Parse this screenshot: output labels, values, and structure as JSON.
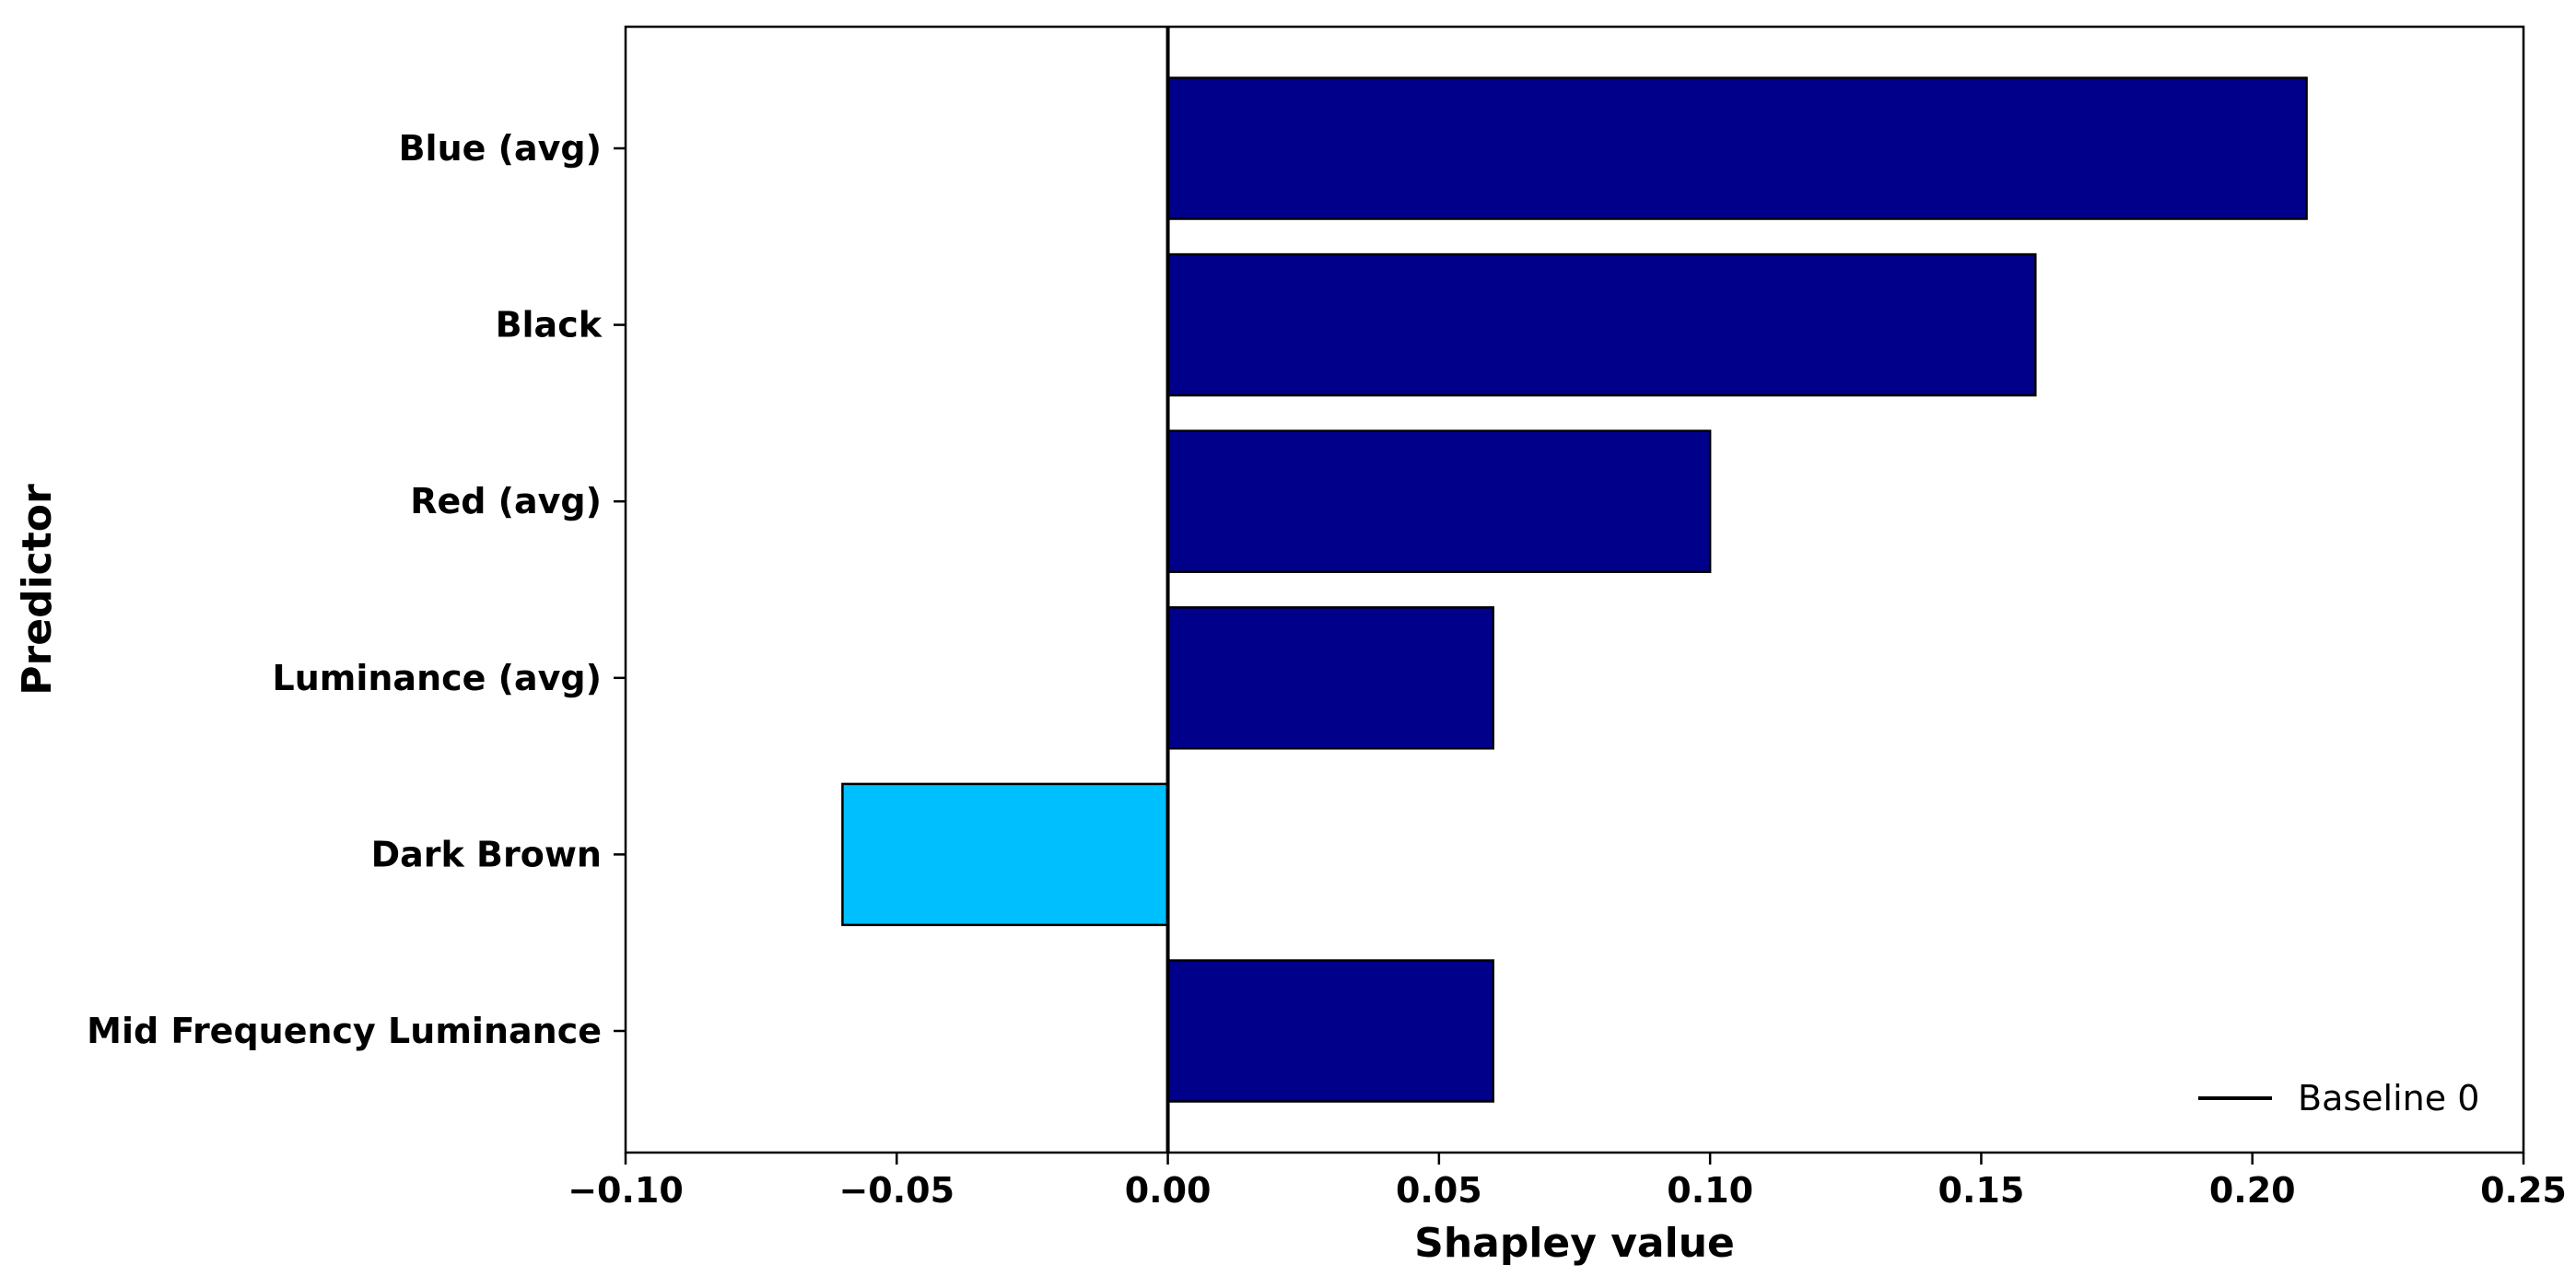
{
  "chart_data": {
    "type": "bar",
    "orientation": "horizontal",
    "categories": [
      "Blue (avg)",
      "Black",
      "Red (avg)",
      "Luminance (avg)",
      "Dark Brown",
      "Mid Frequency Luminance"
    ],
    "values": [
      0.21,
      0.16,
      0.1,
      0.06,
      -0.06,
      0.06
    ],
    "bar_colors": [
      "#00008B",
      "#00008B",
      "#00008B",
      "#00008B",
      "#00BFFF",
      "#00008B"
    ],
    "xlabel": "Shapley value",
    "ylabel": "Predictor",
    "xlim": [
      -0.1,
      0.25
    ],
    "xticks": [
      -0.1,
      -0.05,
      0.0,
      0.05,
      0.1,
      0.15,
      0.2,
      0.25
    ],
    "xtick_labels": [
      "−0.10",
      "−0.05",
      "0.00",
      "0.05",
      "0.10",
      "0.15",
      "0.20",
      "0.25"
    ],
    "baseline": 0,
    "grid": false,
    "legend": {
      "placement": "lower-right",
      "entries": [
        "Baseline 0"
      ]
    }
  }
}
